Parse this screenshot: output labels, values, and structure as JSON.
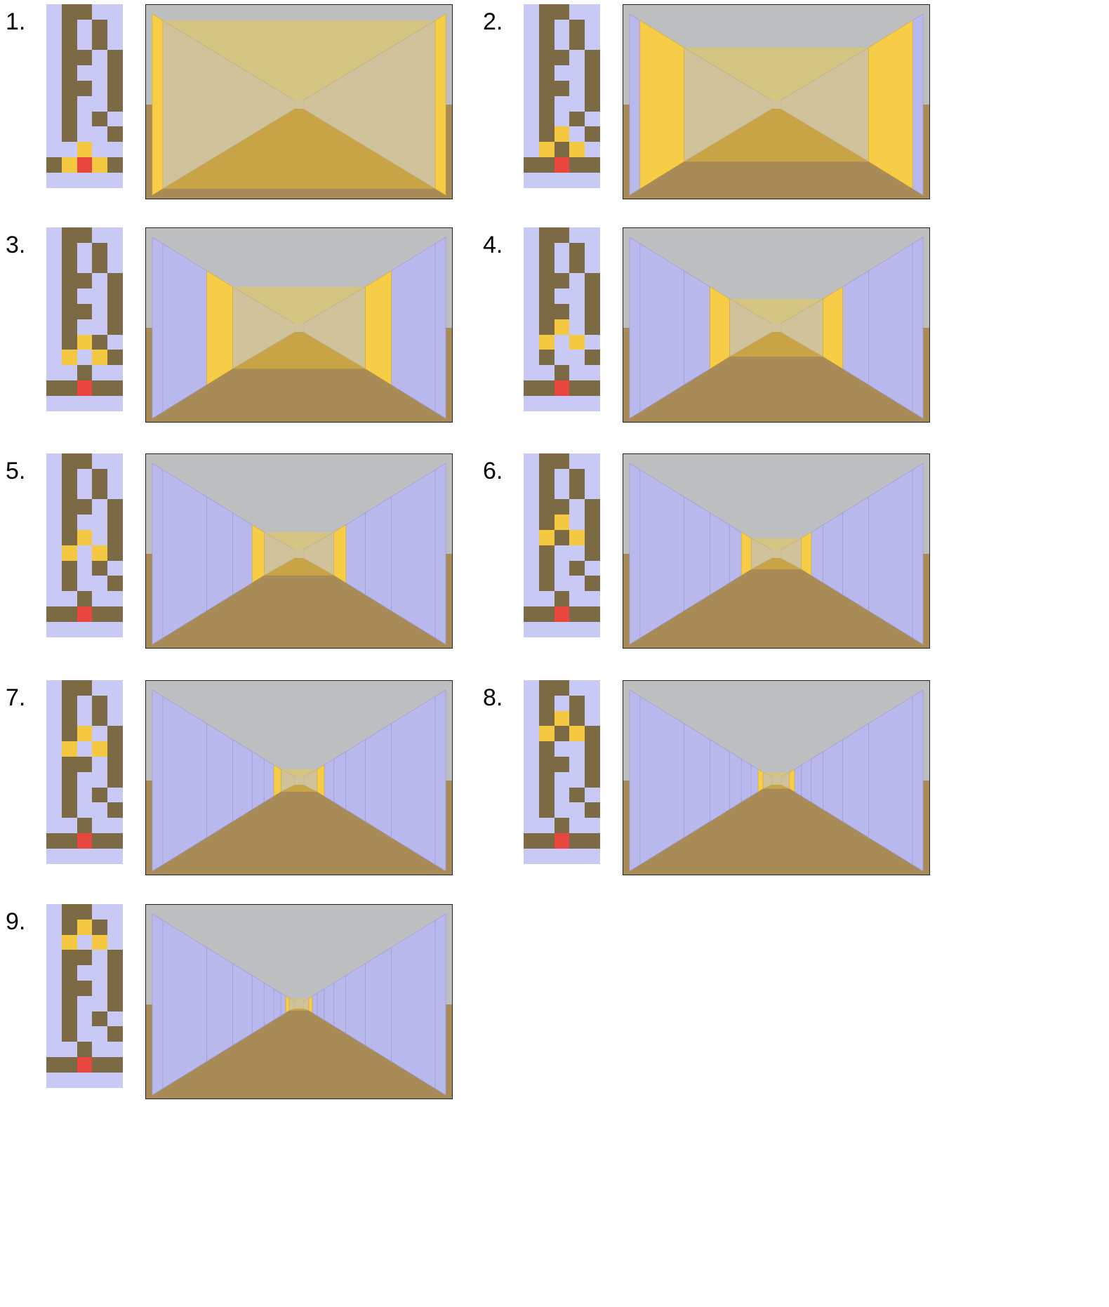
{
  "colors": {
    "wall": "#c9c9f5",
    "path": "#7b6a44",
    "highlight": "#f5c842",
    "player": "#e8473f",
    "ceiling": "#bdbec0",
    "floor": "#a98b57",
    "side_wall": "#b8b8ec",
    "yellow_wall": "#f7cd48",
    "far_wall": "#d0c29a",
    "far_ceiling": "#d4c583",
    "far_floor": "#c9a447"
  },
  "panels": [
    {
      "number": "1.",
      "player_row": 10,
      "highlights": [
        [
          9,
          2
        ],
        [
          10,
          1
        ],
        [
          10,
          3
        ]
      ],
      "openings": [
        0,
        3
      ],
      "depth": 0
    },
    {
      "number": "2.",
      "player_row": 10,
      "highlights": [
        [
          8,
          2
        ],
        [
          9,
          1
        ],
        [
          9,
          3
        ]
      ],
      "openings": [
        1,
        3
      ],
      "depth": 1
    },
    {
      "number": "3.",
      "player_row": 10,
      "highlights": [
        [
          7,
          2
        ],
        [
          8,
          1
        ],
        [
          8,
          3
        ]
      ],
      "openings": [
        2,
        5
      ],
      "depth": 2
    },
    {
      "number": "4.",
      "player_row": 10,
      "highlights": [
        [
          6,
          2
        ],
        [
          7,
          1
        ],
        [
          7,
          3
        ]
      ],
      "openings": [
        3,
        5
      ],
      "depth": 3
    },
    {
      "number": "5.",
      "player_row": 10,
      "highlights": [
        [
          5,
          2
        ],
        [
          6,
          1
        ],
        [
          6,
          3
        ]
      ],
      "openings": [
        4,
        5
      ],
      "depth": 4
    },
    {
      "number": "6.",
      "player_row": 10,
      "highlights": [
        [
          4,
          2
        ],
        [
          5,
          1
        ],
        [
          5,
          3
        ]
      ],
      "openings": [
        5,
        6
      ],
      "depth": 5
    },
    {
      "number": "7.",
      "player_row": 10,
      "highlights": [
        [
          3,
          2
        ],
        [
          4,
          1
        ],
        [
          4,
          3
        ]
      ],
      "openings": [
        6,
        7
      ],
      "depth": 6
    },
    {
      "number": "8.",
      "player_row": 10,
      "highlights": [
        [
          2,
          2
        ],
        [
          3,
          1
        ],
        [
          3,
          3
        ]
      ],
      "openings": [
        7,
        8
      ],
      "depth": 7
    },
    {
      "number": "9.",
      "player_row": 10,
      "highlights": [
        [
          1,
          2
        ],
        [
          2,
          1
        ],
        [
          2,
          3
        ]
      ],
      "openings": [
        8,
        9
      ],
      "depth": 8
    }
  ]
}
